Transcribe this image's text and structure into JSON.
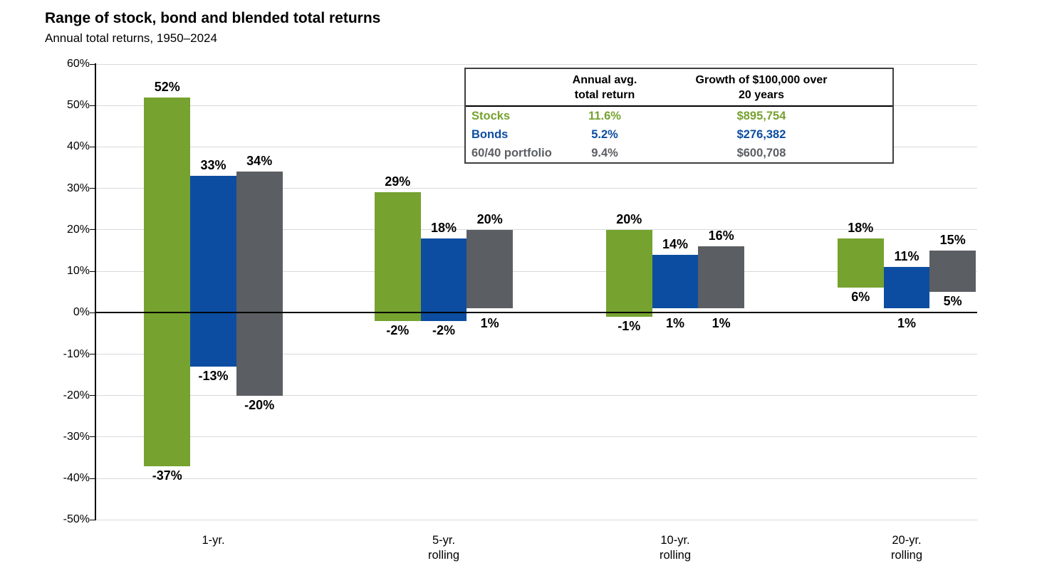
{
  "title": "Range of stock, bond and blended total returns",
  "subtitle": "Annual total returns, 1950–2024",
  "colors": {
    "stocks": "#76A22F",
    "bonds": "#0C4DA1",
    "blend": "#5B5E62",
    "grid": "#D9D9D9",
    "axis": "#000000",
    "table_border": "#3F3F3F"
  },
  "summary_table": {
    "corner_label": "",
    "col_headers": [
      "Annual avg.\ntotal return",
      "Growth of $100,000 over\n20 years"
    ],
    "rows": [
      {
        "label": "Stocks",
        "avg_return": "11.6%",
        "growth": "$895,754",
        "color_key": "stocks"
      },
      {
        "label": "Bonds",
        "avg_return": "5.2%",
        "growth": "$276,382",
        "color_key": "bonds"
      },
      {
        "label": "60/40 portfolio",
        "avg_return": "9.4%",
        "growth": "$600,708",
        "color_key": "blend"
      }
    ]
  },
  "chart_data": {
    "type": "bar",
    "subtype": "floating-range-columns",
    "categories": [
      "1-yr.",
      "5-yr.\nrolling",
      "10-yr.\nrolling",
      "20-yr.\nrolling"
    ],
    "series": [
      {
        "name": "Stocks",
        "color_key": "stocks",
        "ranges": [
          [
            -37,
            52
          ],
          [
            -2,
            29
          ],
          [
            -1,
            20
          ],
          [
            6,
            18
          ]
        ]
      },
      {
        "name": "Bonds",
        "color_key": "bonds",
        "ranges": [
          [
            -13,
            33
          ],
          [
            -2,
            18
          ],
          [
            1,
            14
          ],
          [
            1,
            11
          ]
        ]
      },
      {
        "name": "60/40 portfolio",
        "color_key": "blend",
        "ranges": [
          [
            -20,
            34
          ],
          [
            1,
            20
          ],
          [
            1,
            16
          ],
          [
            5,
            15
          ]
        ]
      }
    ],
    "title": "Range of stock, bond and blended total returns",
    "xlabel": "",
    "ylabel": "",
    "ylim": [
      -50,
      60
    ],
    "ytick_step": 10,
    "ytick_suffix": "%",
    "grid": true,
    "zero_line": true,
    "legend_position": "table-top-right"
  }
}
